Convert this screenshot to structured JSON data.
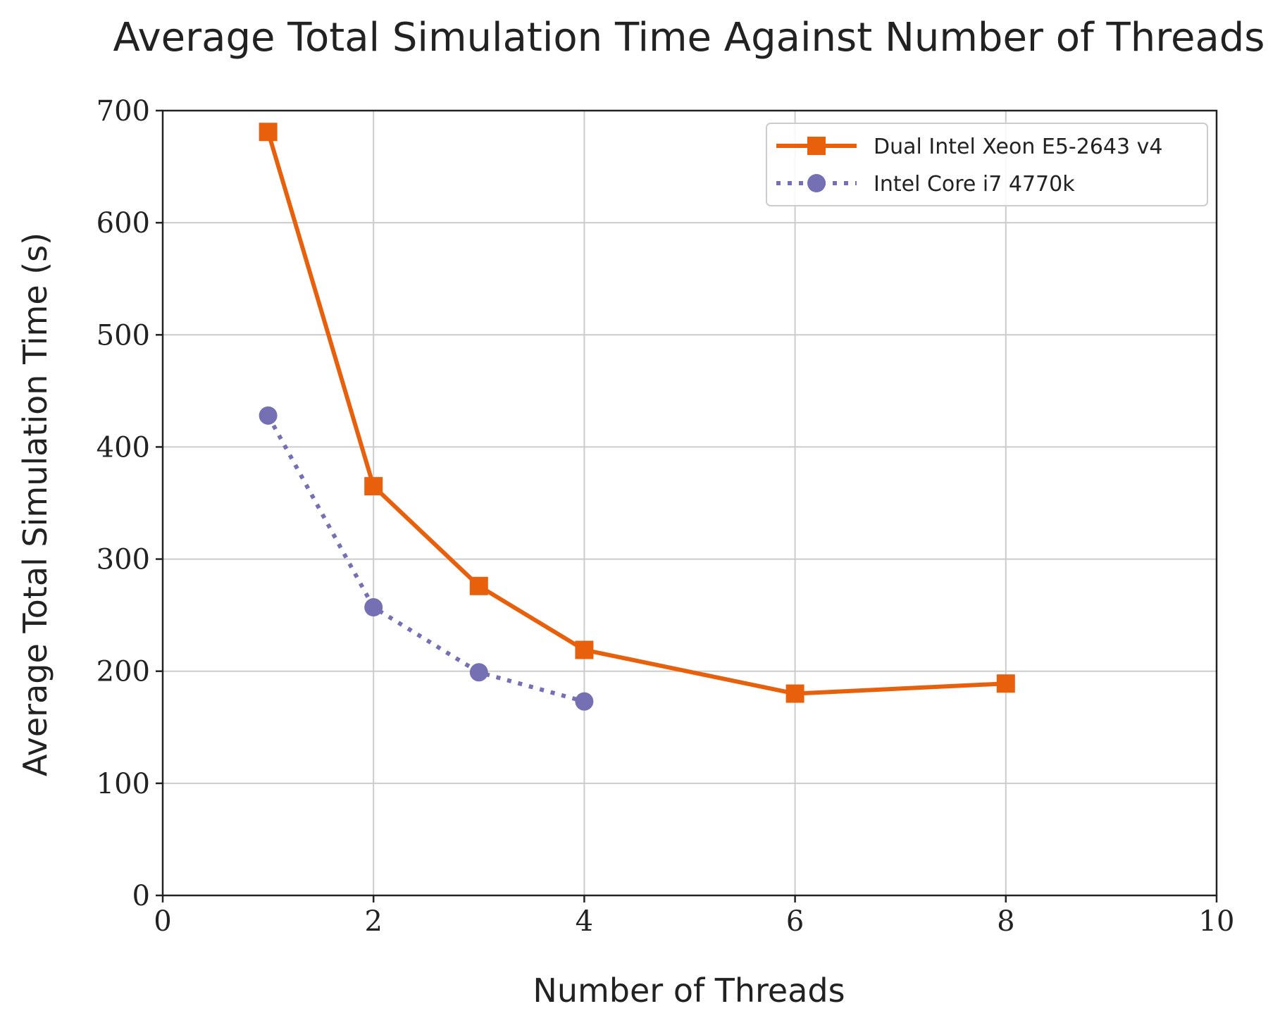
{
  "chart_data": {
    "type": "line",
    "title": "Average Total Simulation Time Against Number of Threads",
    "xlabel": "Number of Threads",
    "ylabel": "Average Total Simulation Time (s)",
    "xlim": [
      0,
      10
    ],
    "ylim": [
      0,
      700
    ],
    "xticks": [
      "0",
      "2",
      "4",
      "6",
      "8",
      "10"
    ],
    "yticks": [
      "0",
      "100",
      "200",
      "300",
      "400",
      "500",
      "600",
      "700"
    ],
    "grid": true,
    "legend_position": "top-right",
    "series": [
      {
        "name": "Dual Intel Xeon E5-2643 v4",
        "color": "#e8600c",
        "line_style": "solid",
        "marker": "square",
        "x": [
          1,
          2,
          3,
          4,
          6,
          8
        ],
        "y": [
          681,
          365,
          276,
          219,
          180,
          189
        ]
      },
      {
        "name": "Intel Core i7 4770k",
        "color": "#7570b3",
        "line_style": "dotted",
        "marker": "circle",
        "x": [
          1,
          2,
          3,
          4
        ],
        "y": [
          428,
          257,
          199,
          173
        ]
      }
    ]
  }
}
